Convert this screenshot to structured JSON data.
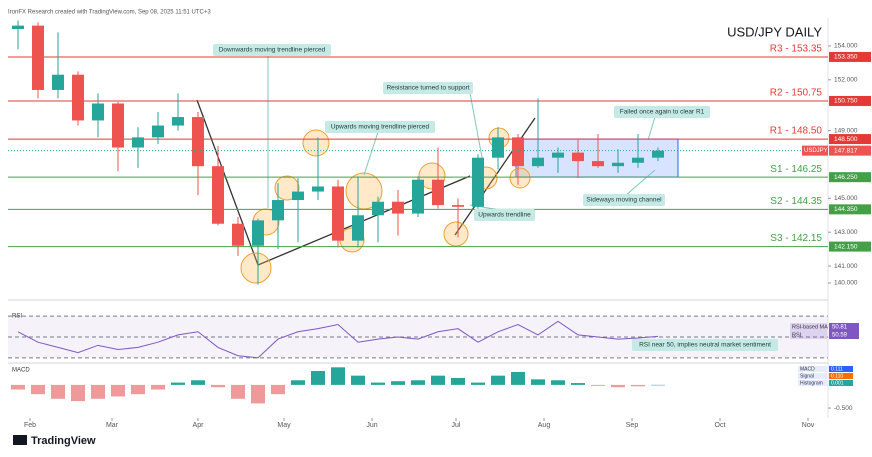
{
  "header": "IronFX Research created with TradingView.com, Sep 08, 2025 11:51 UTC+3",
  "logo": "TradingView",
  "annotations": [
    "Downwards moving trendline pierced",
    "Upwards moving trendline pierced",
    "Resistance turned to support",
    "Failed once again to clear R1",
    "Sideways moving channel",
    "Upwards trendline",
    "RSI near 50, implies neutral market sentiment"
  ],
  "chart_data": [
    {
      "type": "candlestick",
      "title": "USD/JPY DAILY",
      "symbol": "USDJPY",
      "last_value": 147.817,
      "up_color": "#26a69a",
      "down_color": "#ef5350",
      "open": [
        155.0,
        155.2,
        151.4,
        152.3,
        149.6,
        150.6,
        148.0,
        148.6,
        149.3,
        149.8,
        146.9,
        143.5,
        142.2,
        143.7,
        144.9,
        145.4,
        145.7,
        142.5,
        144.0,
        144.8,
        144.1,
        146.1,
        144.6,
        144.5,
        147.4,
        148.6,
        146.9,
        147.4,
        147.7,
        147.2,
        146.9,
        147.1,
        147.4
      ],
      "high": [
        155.5,
        155.4,
        154.8,
        152.5,
        151.2,
        150.7,
        149.2,
        150.1,
        151.2,
        150.1,
        148.1,
        143.9,
        143.8,
        145.9,
        146.2,
        148.6,
        146.1,
        146.3,
        145.1,
        145.5,
        146.3,
        148.0,
        145.0,
        147.6,
        149.2,
        148.8,
        150.9,
        148.0,
        148.5,
        148.8,
        147.9,
        148.8,
        148.0
      ],
      "low": [
        153.8,
        150.9,
        150.9,
        149.3,
        148.6,
        146.6,
        146.8,
        148.2,
        149.0,
        145.2,
        143.4,
        141.6,
        139.9,
        142.0,
        142.4,
        144.9,
        142.1,
        142.1,
        142.4,
        142.8,
        143.9,
        144.4,
        142.7,
        144.4,
        146.7,
        145.8,
        146.8,
        146.5,
        146.2,
        146.8,
        146.5,
        146.8,
        147.2
      ],
      "close": [
        155.2,
        151.4,
        152.3,
        149.6,
        150.6,
        148.0,
        148.6,
        149.3,
        149.8,
        146.9,
        143.5,
        142.2,
        143.7,
        144.9,
        145.4,
        145.7,
        142.5,
        144.0,
        144.8,
        144.1,
        146.1,
        144.6,
        144.5,
        147.4,
        148.6,
        146.9,
        147.4,
        147.7,
        147.2,
        146.9,
        147.1,
        147.4,
        147.817
      ],
      "xlim": [
        -0.5,
        40.5
      ],
      "xticks": [
        {
          "value": 0.6,
          "label": "Feb"
        },
        {
          "value": 4.7,
          "label": "Mar"
        },
        {
          "value": 9.0,
          "label": "Apr"
        },
        {
          "value": 13.3,
          "label": "May"
        },
        {
          "value": 17.7,
          "label": "Jun"
        },
        {
          "value": 21.9,
          "label": "Jul"
        },
        {
          "value": 26.3,
          "label": "Aug"
        },
        {
          "value": 30.7,
          "label": "Sep"
        },
        {
          "value": 35.1,
          "label": "Oct"
        },
        {
          "value": 39.5,
          "label": "Nov"
        }
      ],
      "ylim": [
        139.35,
        155.65
      ],
      "yticks": [
        {
          "value": 154,
          "label": "154.000"
        },
        {
          "value": 152,
          "label": "152.000"
        },
        {
          "value": 149,
          "label": "149.000"
        },
        {
          "value": 145,
          "label": "145.000"
        },
        {
          "value": 143,
          "label": "143.000"
        },
        {
          "value": 141,
          "label": "141.000"
        },
        {
          "value": 140,
          "label": "140.000"
        }
      ],
      "levels": [
        {
          "name": "R3 - 153.35",
          "value": 153.35,
          "label": "153.350",
          "color": "#e53935"
        },
        {
          "name": "R2 - 150.75",
          "value": 150.75,
          "label": "150.750",
          "color": "#e53935"
        },
        {
          "name": "R1 - 148.50",
          "value": 148.5,
          "label": "148.500",
          "color": "#e53935"
        },
        {
          "name": "S1 - 146.25",
          "value": 146.25,
          "label": "146.250",
          "color": "#43a047"
        },
        {
          "name": "S2 - 144.35",
          "value": 144.35,
          "label": "144.350",
          "color": "#43a047"
        },
        {
          "name": "S3 - 142.15",
          "value": 142.15,
          "label": "142.150",
          "color": "#43a047"
        }
      ]
    },
    {
      "type": "line",
      "title": "RSI",
      "ylim": [
        26,
        74
      ],
      "bands": [
        70,
        50,
        30
      ],
      "series": [
        {
          "name": "RSI",
          "color": "#7e57c2",
          "values": [
            55,
            45,
            40,
            35,
            42,
            38,
            40,
            45,
            52,
            55,
            40,
            32,
            30,
            48,
            55,
            58,
            62,
            45,
            48,
            50,
            48,
            55,
            58,
            45,
            55,
            62,
            52,
            65,
            52,
            50,
            48,
            49,
            50.59
          ]
        }
      ],
      "legend": [
        {
          "name": "RSI-based MA",
          "value": 50.81,
          "color": "#7e57c2"
        },
        {
          "name": "RSI",
          "value": 50.59,
          "color": "#7e57c2"
        }
      ]
    },
    {
      "type": "histogram",
      "title": "MACD",
      "ylim": [
        -0.65,
        0.43
      ],
      "yticks": [
        {
          "value": -0.5,
          "label": "-0.500"
        }
      ],
      "series": [
        {
          "name": "Histogram",
          "up_color": "#26a69a",
          "down_color": "#ef9a9a",
          "values": [
            -0.1,
            -0.2,
            -0.3,
            -0.35,
            -0.3,
            -0.25,
            -0.2,
            -0.1,
            0.05,
            0.1,
            -0.05,
            -0.3,
            -0.4,
            -0.2,
            0.1,
            0.3,
            0.38,
            0.2,
            0.05,
            0.08,
            0.1,
            0.2,
            0.15,
            0.05,
            0.2,
            0.28,
            0.12,
            0.1,
            0.04,
            -0.02,
            -0.05,
            -0.03,
            0.001
          ]
        }
      ],
      "legend": [
        {
          "name": "MACD",
          "value": 0.111,
          "color": "#2962ff"
        },
        {
          "name": "Signal",
          "value": 0.11,
          "label": "0.110",
          "color": "#ff6d00"
        },
        {
          "name": "Histogram",
          "value": 0.001,
          "color": "#26a69a"
        }
      ]
    }
  ]
}
